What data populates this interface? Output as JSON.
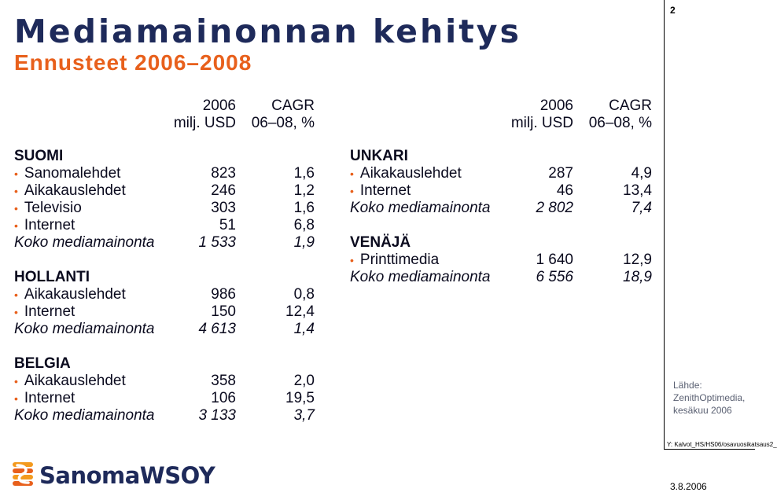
{
  "title": "Mediamainonnan kehitys",
  "subtitle": "Ennusteet 2006–2008",
  "page_number": "2",
  "columns": {
    "year": "2006",
    "unit": "milj. USD",
    "cagr": "CAGR",
    "cagr_period": "06–08, %"
  },
  "left_sections": [
    {
      "name": "SUOMI",
      "rows": [
        {
          "label": "Sanomalehdet",
          "v1": "823",
          "v2": "1,6"
        },
        {
          "label": "Aikakauslehdet",
          "v1": "246",
          "v2": "1,2"
        },
        {
          "label": "Televisio",
          "v1": "303",
          "v2": "1,6"
        },
        {
          "label": "Internet",
          "v1": "51",
          "v2": "6,8"
        }
      ],
      "total": {
        "label": "Koko mediamainonta",
        "v1": "1 533",
        "v2": "1,9"
      }
    },
    {
      "name": "HOLLANTI",
      "rows": [
        {
          "label": "Aikakauslehdet",
          "v1": "986",
          "v2": "0,8"
        },
        {
          "label": "Internet",
          "v1": "150",
          "v2": "12,4"
        }
      ],
      "total": {
        "label": "Koko mediamainonta",
        "v1": "4 613",
        "v2": "1,4"
      }
    },
    {
      "name": "BELGIA",
      "rows": [
        {
          "label": "Aikakauslehdet",
          "v1": "358",
          "v2": "2,0"
        },
        {
          "label": "Internet",
          "v1": "106",
          "v2": "19,5"
        }
      ],
      "total": {
        "label": "Koko mediamainonta",
        "v1": "3 133",
        "v2": "3,7"
      }
    }
  ],
  "right_sections": [
    {
      "name": "UNKARI",
      "rows": [
        {
          "label": "Aikakauslehdet",
          "v1": "287",
          "v2": "4,9"
        },
        {
          "label": "Internet",
          "v1": "46",
          "v2": "13,4"
        }
      ],
      "total": {
        "label": "Koko mediamainonta",
        "v1": "2 802",
        "v2": "7,4"
      }
    },
    {
      "name": "VENÄJÄ",
      "rows": [
        {
          "label": "Printtimedia",
          "v1": "1 640",
          "v2": "12,9"
        }
      ],
      "total": {
        "label": "Koko mediamainonta",
        "v1": "6 556",
        "v2": "18,9"
      }
    }
  ],
  "source": {
    "label": "Lähde:",
    "name": "ZenithOptimedia,",
    "date": "kesäkuu 2006"
  },
  "file_path": "Y: Kalvot_HS/HS06/osavuosikatsaus2_",
  "date": "3.8.2006",
  "logo": {
    "text": "SanomaWSOY",
    "icon": "sanoma-s-logo-icon"
  },
  "colors": {
    "title": "#1e2a5a",
    "accent": "#e8601c"
  }
}
